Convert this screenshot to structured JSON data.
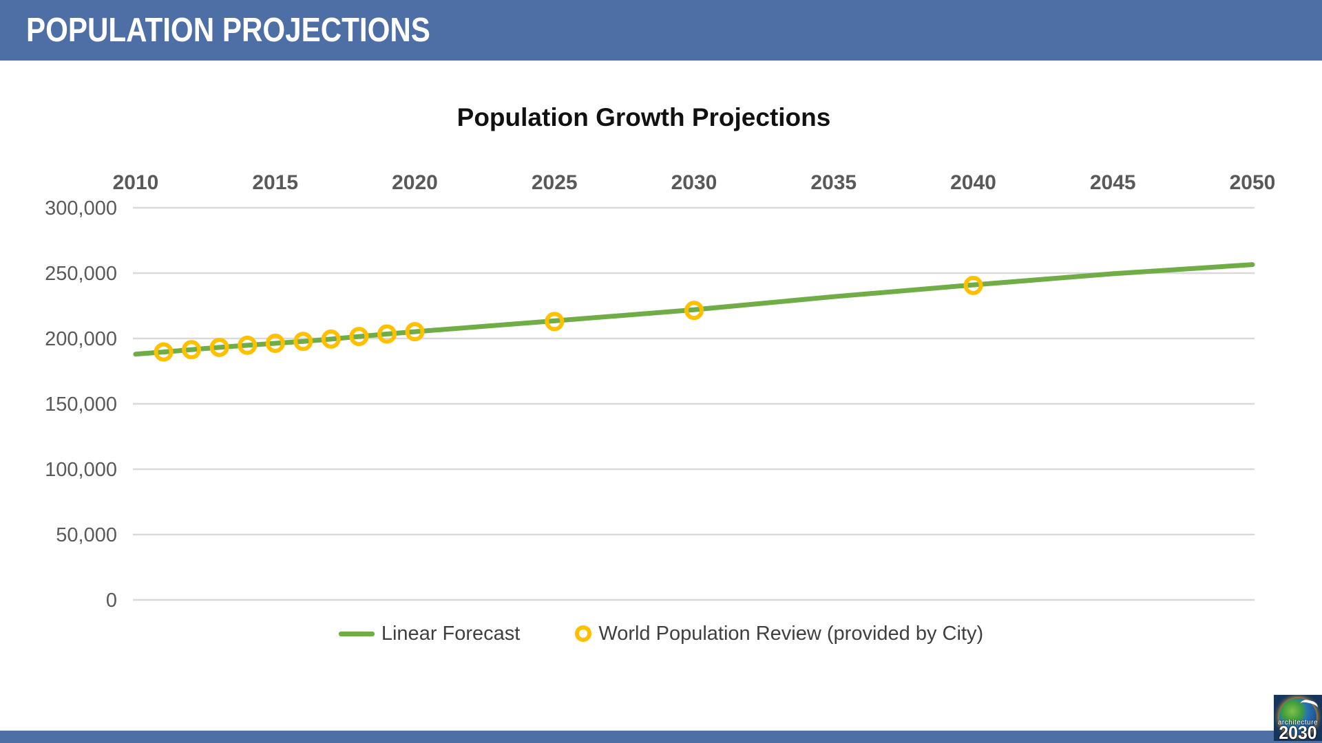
{
  "header": {
    "title": "POPULATION PROJECTIONS",
    "bg_color": "#4e6fa6",
    "text_color": "#ffffff"
  },
  "footer": {
    "bg_color": "#4e6fa6"
  },
  "logo": {
    "small_text": "architecture",
    "big_text": "2030",
    "bg_color": "#16355c"
  },
  "chart": {
    "title": "Population Growth Projections",
    "legend": [
      {
        "label": "Linear Forecast",
        "type": "line",
        "color": "#70AD47"
      },
      {
        "label": "World Population Review (provided by City)",
        "type": "ring",
        "color": "#FFC000"
      }
    ]
  },
  "chart_data": {
    "type": "line",
    "title": "Population Growth Projections",
    "xlabel": "",
    "ylabel": "",
    "xlim": [
      2010,
      2050
    ],
    "ylim": [
      0,
      300000
    ],
    "grid": "horizontal",
    "grid_color": "#D9D9D9",
    "axis_text_color": "#595959",
    "legend_position": "bottom",
    "x_tick_labels": [
      "2010",
      "2015",
      "2020",
      "2025",
      "2030",
      "2035",
      "2040",
      "2045",
      "2050"
    ],
    "x_tick_values": [
      2010,
      2015,
      2020,
      2025,
      2030,
      2035,
      2040,
      2045,
      2050
    ],
    "y_tick_labels": [
      "300,000",
      "250,000",
      "200,000",
      "150,000",
      "100,000",
      "50,000",
      "0"
    ],
    "y_tick_values": [
      300000,
      250000,
      200000,
      150000,
      100000,
      50000,
      0
    ],
    "series": [
      {
        "name": "Linear Forecast",
        "type": "line",
        "color": "#70AD47",
        "x": [
          2010,
          2011,
          2012,
          2013,
          2014,
          2015,
          2016,
          2017,
          2018,
          2019,
          2020,
          2025,
          2030,
          2035,
          2040,
          2045,
          2050
        ],
        "values": [
          188000,
          189700,
          191400,
          193200,
          194800,
          196300,
          197800,
          199500,
          201500,
          203400,
          205200,
          213500,
          222000,
          232000,
          241000,
          249500,
          256500
        ]
      },
      {
        "name": "World Population Review (provided by City)",
        "type": "scatter",
        "marker": "open-circle",
        "color": "#FFC000",
        "x": [
          2011,
          2012,
          2013,
          2014,
          2015,
          2016,
          2017,
          2018,
          2019,
          2020,
          2025,
          2030,
          2040
        ],
        "values": [
          189700,
          191400,
          193200,
          194800,
          196300,
          197800,
          199500,
          201500,
          203400,
          205200,
          213000,
          221500,
          240600
        ]
      }
    ]
  }
}
